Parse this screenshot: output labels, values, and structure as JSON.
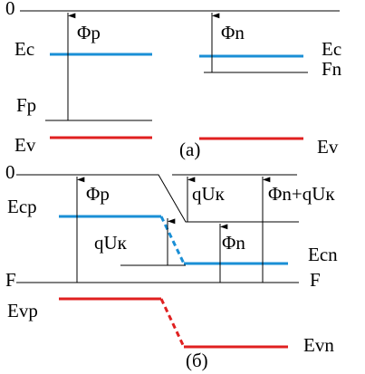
{
  "panel_a": {
    "zero": "0",
    "phi_p": "Φp",
    "phi_n": "Φn",
    "ec_left": "Ec",
    "ec_right": "Ec",
    "fp": "Fp",
    "fn": "Fn",
    "ev_left": "Ev",
    "ev_right": "Ev",
    "caption": "(a)"
  },
  "panel_b": {
    "zero": "0",
    "ecp": "Ecp",
    "phi_p": "Φp",
    "qu_left": "qUк",
    "qu_right": "qUк",
    "phi_n_qu": "Φn+qUк",
    "phi_n": "Φn",
    "ecn": "Ecn",
    "f_left": "F",
    "f_right": "F",
    "evp": "Evp",
    "evn": "Evn",
    "caption": "(б)"
  }
}
